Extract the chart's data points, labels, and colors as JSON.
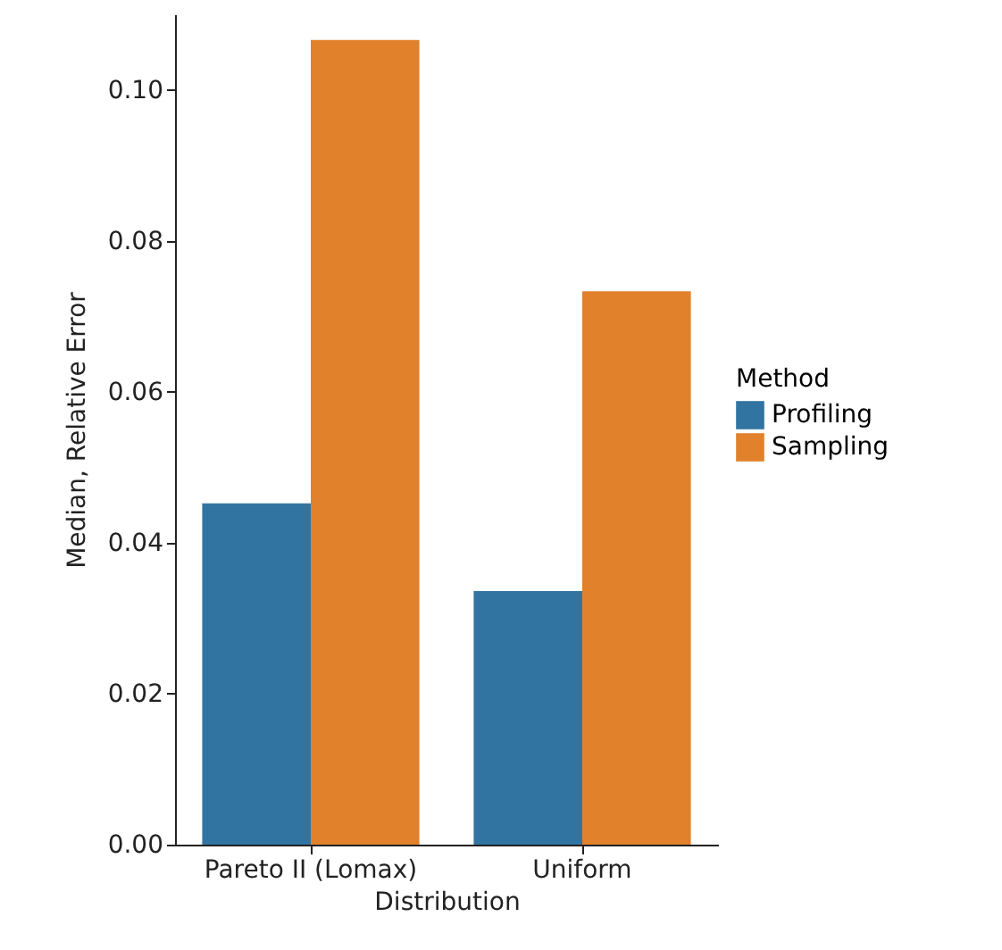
{
  "chart_data": {
    "type": "bar",
    "xlabel": "Distribution",
    "ylabel": "Median, Relative Error",
    "legend_title": "Method",
    "categories": [
      "Pareto II (Lomax)",
      "Uniform"
    ],
    "series": [
      {
        "name": "Profiling",
        "color": "#3274a1",
        "values": [
          0.0452,
          0.0336
        ]
      },
      {
        "name": "Sampling",
        "color": "#e1812c",
        "values": [
          0.1066,
          0.0733
        ]
      }
    ],
    "ylim": [
      0,
      0.11
    ],
    "yticks": [
      {
        "value": 0,
        "label": "0.00"
      },
      {
        "value": 0.02,
        "label": "0.02"
      },
      {
        "value": 0.04,
        "label": "0.04"
      },
      {
        "value": 0.06,
        "label": "0.06"
      },
      {
        "value": 0.08,
        "label": "0.08"
      },
      {
        "value": 0.1,
        "label": "0.10"
      }
    ],
    "grid": false,
    "legend": "right"
  }
}
